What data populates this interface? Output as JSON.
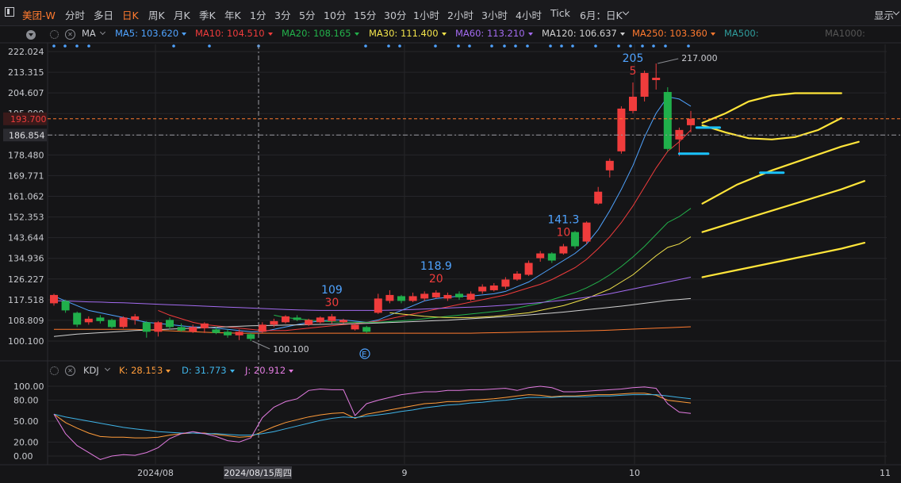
{
  "topbar": {
    "symbol": "美团-W",
    "periods": [
      "分时",
      "多日",
      "日K",
      "周K",
      "月K",
      "季K",
      "年K",
      "1分",
      "3分",
      "5分",
      "10分",
      "15分",
      "30分",
      "1小时",
      "2小时",
      "3小时",
      "4小时",
      "Tick"
    ],
    "active_period": "日K",
    "period_selector": "6月：日K",
    "display_label": "显示"
  },
  "ma_toolbar": {
    "indicator": "MA",
    "items": [
      {
        "label": "MA5:",
        "value": "103.620",
        "color": "#4fa3ff"
      },
      {
        "label": "MA10:",
        "value": "104.510",
        "color": "#f03c3c"
      },
      {
        "label": "MA20:",
        "value": "108.165",
        "color": "#23b24b"
      },
      {
        "label": "MA30:",
        "value": "111.400",
        "color": "#f2e34b"
      },
      {
        "label": "MA60:",
        "value": "113.210",
        "color": "#a36bf0"
      },
      {
        "label": "MA120:",
        "value": "106.637",
        "color": "#d0d0d0"
      },
      {
        "label": "MA250:",
        "value": "103.360",
        "color": "#ff7a2f"
      },
      {
        "label": "MA500:",
        "value": "",
        "color": "#2f9d9d"
      },
      {
        "label": "MA1000:",
        "value": "",
        "color": "#555"
      }
    ],
    "extra_ghost": "MA1000"
  },
  "kdj_toolbar": {
    "indicator": "KDJ",
    "items": [
      {
        "label": "K:",
        "value": "28.153",
        "color": "#ff9c3a"
      },
      {
        "label": "D:",
        "value": "31.773",
        "color": "#3fb4e8"
      },
      {
        "label": "J:",
        "value": "20.912",
        "color": "#e27be0"
      }
    ]
  },
  "colors": {
    "up": "#f03c3c",
    "down": "#20b04b",
    "bg": "#151517",
    "grid": "#26262a",
    "accent": "#ff7a2f"
  },
  "chart_data": {
    "type": "candlestick",
    "price_axis": {
      "ylim": [
        95,
        225
      ],
      "ticks": [
        "222.024",
        "213.315",
        "204.607",
        "195.899",
        "186.854",
        "178.480",
        "169.771",
        "161.062",
        "152.353",
        "143.644",
        "134.936",
        "126.227",
        "117.518",
        "108.809",
        "100.100"
      ]
    },
    "current_price_label": "193.700",
    "crosshair_price_label": "186.854",
    "crosshair_date_label": "2024/08/15周四",
    "x_axis_labels": [
      "2024/08",
      "9",
      "10",
      "11"
    ],
    "high_annotation": "217.000",
    "low_annotation": "100.100",
    "earnings_marker": "E",
    "candles": [
      {
        "o": 116,
        "c": 119.5,
        "h": 120,
        "l": 115
      },
      {
        "o": 117,
        "c": 113,
        "h": 117.5,
        "l": 112
      },
      {
        "o": 112,
        "c": 107,
        "h": 112.5,
        "l": 106
      },
      {
        "o": 108,
        "c": 109.5,
        "h": 110.5,
        "l": 107
      },
      {
        "o": 110,
        "c": 108.5,
        "h": 111,
        "l": 107.5
      },
      {
        "o": 109,
        "c": 106,
        "h": 109.5,
        "l": 105.5
      },
      {
        "o": 106,
        "c": 110,
        "h": 110.5,
        "l": 105.5
      },
      {
        "o": 109,
        "c": 110.5,
        "h": 111.5,
        "l": 107
      },
      {
        "o": 108,
        "c": 104,
        "h": 108.5,
        "l": 101.5
      },
      {
        "o": 104,
        "c": 108,
        "h": 108.5,
        "l": 102
      },
      {
        "o": 109,
        "c": 106,
        "h": 110,
        "l": 105
      },
      {
        "o": 106,
        "c": 104.5,
        "h": 107.5,
        "l": 104
      },
      {
        "o": 104,
        "c": 106,
        "h": 107,
        "l": 103.5
      },
      {
        "o": 105.5,
        "c": 107.5,
        "h": 108,
        "l": 103.5
      },
      {
        "o": 105,
        "c": 103.5,
        "h": 106,
        "l": 103
      },
      {
        "o": 104,
        "c": 102.5,
        "h": 105,
        "l": 101.5
      },
      {
        "o": 102.5,
        "c": 104,
        "h": 105,
        "l": 100.5
      },
      {
        "o": 103,
        "c": 101,
        "h": 103.5,
        "l": 100.1
      },
      {
        "o": 104,
        "c": 107,
        "h": 108,
        "l": 103.5
      },
      {
        "o": 107,
        "c": 108.5,
        "h": 109.5,
        "l": 106
      },
      {
        "o": 108,
        "c": 110.5,
        "h": 111,
        "l": 107.5
      },
      {
        "o": 110,
        "c": 109,
        "h": 111,
        "l": 108.5
      },
      {
        "o": 107,
        "c": 109,
        "h": 109.5,
        "l": 106.5
      },
      {
        "o": 108,
        "c": 110,
        "h": 110.5,
        "l": 107.5
      },
      {
        "o": 108.5,
        "c": 110.5,
        "h": 111.5,
        "l": 107.5
      },
      {
        "o": 108,
        "c": 109,
        "h": 109.5,
        "l": 107.5
      },
      {
        "o": 105,
        "c": 107,
        "h": 107.5,
        "l": 104.5
      },
      {
        "o": 106,
        "c": 104,
        "h": 106.5,
        "l": 103.5
      },
      {
        "o": 112,
        "c": 118,
        "h": 120,
        "l": 111.5
      },
      {
        "o": 117,
        "c": 119.5,
        "h": 121.5,
        "l": 116
      },
      {
        "o": 119,
        "c": 117,
        "h": 119.5,
        "l": 116
      },
      {
        "o": 117,
        "c": 119,
        "h": 120.5,
        "l": 116.5
      },
      {
        "o": 118,
        "c": 120,
        "h": 121,
        "l": 117
      },
      {
        "o": 118.5,
        "c": 120.5,
        "h": 121.5,
        "l": 118
      },
      {
        "o": 118,
        "c": 119.5,
        "h": 120.5,
        "l": 117
      },
      {
        "o": 120,
        "c": 118.5,
        "h": 121,
        "l": 117.5
      },
      {
        "o": 117.5,
        "c": 120,
        "h": 121,
        "l": 117
      },
      {
        "o": 121,
        "c": 123,
        "h": 124,
        "l": 120
      },
      {
        "o": 121.5,
        "c": 123.5,
        "h": 124.5,
        "l": 121
      },
      {
        "o": 123,
        "c": 126,
        "h": 127,
        "l": 122
      },
      {
        "o": 126,
        "c": 128.5,
        "h": 129.5,
        "l": 125.5
      },
      {
        "o": 128,
        "c": 133,
        "h": 134,
        "l": 127.5
      },
      {
        "o": 135,
        "c": 137,
        "h": 138,
        "l": 133.5
      },
      {
        "o": 137,
        "c": 134,
        "h": 137.5,
        "l": 133
      },
      {
        "o": 137,
        "c": 140,
        "h": 141,
        "l": 136.5
      },
      {
        "o": 146,
        "c": 140,
        "h": 146.5,
        "l": 139
      },
      {
        "o": 142,
        "c": 150,
        "h": 150.5,
        "l": 141
      },
      {
        "o": 158,
        "c": 163,
        "h": 165,
        "l": 157.5
      },
      {
        "o": 172,
        "c": 176,
        "h": 177,
        "l": 169
      },
      {
        "o": 180,
        "c": 198,
        "h": 199,
        "l": 179
      },
      {
        "o": 197,
        "c": 203,
        "h": 209,
        "l": 196
      },
      {
        "o": 203,
        "c": 213,
        "h": 214,
        "l": 201
      },
      {
        "o": 210,
        "c": 211,
        "h": 217,
        "l": 206
      },
      {
        "o": 205,
        "c": 181,
        "h": 207,
        "l": 180
      },
      {
        "o": 185,
        "c": 189,
        "h": 190,
        "l": 178
      },
      {
        "o": 191,
        "c": 193.7,
        "h": 197,
        "l": 188
      }
    ],
    "series": [
      {
        "name": "MA5",
        "color": "#4fa3ff",
        "values": [
          119,
          117,
          115,
          113,
          112,
          111,
          110,
          109,
          108,
          107.5,
          107,
          106.5,
          106,
          106,
          105.5,
          105,
          104.5,
          104,
          104,
          105,
          106,
          107,
          108,
          108.5,
          109,
          109,
          108.5,
          108,
          109,
          111,
          113,
          115,
          117,
          118,
          118.5,
          119,
          119,
          119.5,
          120,
          121,
          123,
          125,
          128,
          131,
          134,
          137,
          141,
          147,
          155,
          164,
          174,
          186,
          196,
          203,
          202,
          199
        ]
      },
      {
        "name": "MA10",
        "color": "#f03c3c",
        "values": [
          null,
          null,
          null,
          null,
          null,
          null,
          null,
          null,
          null,
          113,
          111,
          109.5,
          108,
          107,
          106.5,
          106,
          105.5,
          105,
          104.5,
          104.5,
          104.5,
          105,
          105.5,
          106,
          106.5,
          107,
          107.5,
          108,
          108.5,
          109.5,
          110.5,
          111.5,
          112.5,
          113.5,
          114.5,
          115.5,
          116.5,
          117.5,
          118.5,
          119.5,
          121,
          122.5,
          124,
          126,
          128.5,
          131,
          134.5,
          139,
          144,
          150,
          157,
          165,
          173,
          180,
          184,
          189
        ]
      },
      {
        "name": "MA20",
        "color": "#23b24b",
        "values": [
          null,
          null,
          null,
          null,
          null,
          null,
          null,
          null,
          null,
          null,
          null,
          null,
          null,
          null,
          null,
          null,
          null,
          null,
          null,
          111,
          110,
          109.5,
          109,
          108.5,
          108.2,
          108,
          108,
          108,
          108,
          108.3,
          108.6,
          109,
          109.5,
          110,
          110.5,
          111,
          111.5,
          112,
          112.5,
          113,
          114,
          115,
          116,
          117.5,
          119,
          120.5,
          122.5,
          125,
          128,
          131.5,
          135.5,
          140,
          145,
          150,
          152.5,
          156
        ]
      },
      {
        "name": "MA30",
        "color": "#f2e34b",
        "values": [
          null,
          null,
          null,
          null,
          null,
          null,
          null,
          null,
          null,
          null,
          null,
          null,
          null,
          null,
          null,
          null,
          null,
          null,
          null,
          null,
          null,
          null,
          null,
          null,
          null,
          null,
          null,
          null,
          null,
          112,
          111.5,
          111,
          110.5,
          110.2,
          110,
          110,
          110,
          110.2,
          110.5,
          111,
          111.5,
          112,
          113,
          114,
          115,
          116.5,
          118,
          120,
          122,
          125,
          128,
          132,
          136,
          139.5,
          141,
          144
        ]
      },
      {
        "name": "MA60",
        "color": "#a36bf0",
        "values": [
          117,
          117,
          116.8,
          116.6,
          116.5,
          116.3,
          116.2,
          116,
          115.8,
          115.6,
          115.4,
          115.2,
          115,
          114.8,
          114.6,
          114.4,
          114.2,
          114,
          113.8,
          113.6,
          113.4,
          113.2,
          113.1,
          113,
          113,
          113,
          113,
          113,
          113,
          113.1,
          113.2,
          113.4,
          113.6,
          113.8,
          114,
          114.2,
          114.4,
          114.6,
          114.9,
          115.2,
          115.5,
          115.9,
          116.3,
          116.8,
          117.3,
          117.9,
          118.5,
          119.2,
          120,
          121,
          122,
          123,
          124,
          125,
          126,
          127
        ]
      },
      {
        "name": "MA120",
        "color": "#d0d0d0",
        "values": [
          102,
          102.5,
          103,
          103.3,
          103.6,
          103.9,
          104.2,
          104.5,
          104.7,
          104.9,
          105.1,
          105.3,
          105.5,
          105.7,
          105.9,
          106.1,
          106.3,
          106.5,
          106.6,
          106.7,
          106.8,
          106.9,
          107,
          107.1,
          107.2,
          107.3,
          107.4,
          107.5,
          107.7,
          107.9,
          108.1,
          108.3,
          108.5,
          108.7,
          108.9,
          109.2,
          109.5,
          109.8,
          110.1,
          110.4,
          110.7,
          111.1,
          111.5,
          111.9,
          112.3,
          112.8,
          113.3,
          113.8,
          114.3,
          114.8,
          115.4,
          116,
          116.6,
          117.2,
          117.6,
          118
        ]
      },
      {
        "name": "MA250",
        "color": "#ff7a2f",
        "values": [
          105,
          105,
          105,
          105,
          105,
          105,
          105,
          105,
          104.8,
          104.6,
          104.4,
          104.2,
          104,
          103.8,
          103.6,
          103.5,
          103.4,
          103.4,
          103.4,
          103.4,
          103.4,
          103.4,
          103.4,
          103.4,
          103.4,
          103.4,
          103.4,
          103.4,
          103.4,
          103.4,
          103.4,
          103.4,
          103.4,
          103.4,
          103.4,
          103.4,
          103.4,
          103.5,
          103.6,
          103.7,
          103.8,
          103.9,
          104,
          104.1,
          104.2,
          104.3,
          104.4,
          104.5,
          104.7,
          104.9,
          105.1,
          105.3,
          105.5,
          105.7,
          105.9,
          106.1
        ]
      }
    ],
    "projections": {
      "color": "#ffe53a",
      "upper": [
        [
          56,
          192
        ],
        [
          58,
          196
        ],
        [
          60,
          201
        ],
        [
          62,
          203.5
        ],
        [
          64,
          204.5
        ],
        [
          66,
          204.5
        ],
        [
          68,
          204.5
        ]
      ],
      "middle": [
        [
          56,
          191
        ],
        [
          58,
          188
        ],
        [
          60,
          185.5
        ],
        [
          62,
          185
        ],
        [
          64,
          186
        ],
        [
          66,
          189
        ],
        [
          68,
          194
        ]
      ],
      "band1": [
        [
          56,
          158
        ],
        [
          59,
          166
        ],
        [
          62,
          172
        ],
        [
          65,
          177
        ],
        [
          68,
          182
        ],
        [
          69.5,
          184
        ]
      ],
      "band2": [
        [
          56,
          146
        ],
        [
          60,
          152
        ],
        [
          64,
          158
        ],
        [
          68,
          164
        ],
        [
          70,
          167.5
        ]
      ],
      "band3": [
        [
          56,
          127
        ],
        [
          60,
          131
        ],
        [
          64,
          135
        ],
        [
          68,
          139
        ],
        [
          70,
          141.5
        ]
      ]
    },
    "horizontal_marks": [
      {
        "x1": 54,
        "x2": 56.5,
        "y": 179,
        "color": "#19c2ff"
      },
      {
        "x1": 55.5,
        "x2": 57.5,
        "y": 190,
        "color": "#19c2ff"
      },
      {
        "x1": 61,
        "x2": 63,
        "y": 171,
        "color": "#19c2ff"
      }
    ],
    "annotations": [
      {
        "idx": 24,
        "top": "109",
        "bottom": "30"
      },
      {
        "idx": 33,
        "top": "118.9",
        "bottom": "20"
      },
      {
        "idx": 44,
        "top": "141.3",
        "bottom": "10"
      },
      {
        "idx": 50,
        "top": "205",
        "bottom": "5"
      }
    ],
    "kdj": {
      "ylim": [
        -10,
        108
      ],
      "ticks": [
        "100.00",
        "80.00",
        "50.00",
        "20.00",
        "0.00"
      ],
      "K": [
        60,
        48,
        40,
        33,
        28,
        27,
        27,
        26,
        26,
        27,
        30,
        32,
        33,
        33,
        31,
        29,
        27,
        28,
        35,
        42,
        48,
        52,
        56,
        59,
        61,
        62,
        54,
        60,
        63,
        66,
        69,
        72,
        75,
        76,
        78,
        78,
        80,
        81,
        82,
        84,
        86,
        88,
        87,
        85,
        86,
        86,
        87,
        88,
        88,
        89,
        90,
        90,
        87,
        80,
        78,
        76
      ],
      "D": [
        60,
        56,
        53,
        50,
        47,
        44,
        41,
        39,
        37,
        35,
        34,
        33,
        33,
        32,
        32,
        31,
        30,
        30,
        32,
        35,
        39,
        43,
        47,
        51,
        54,
        56,
        55,
        57,
        59,
        61,
        64,
        66,
        69,
        71,
        73,
        74,
        76,
        77,
        79,
        80,
        82,
        84,
        84,
        84,
        85,
        85,
        85,
        86,
        86,
        87,
        88,
        88,
        88,
        86,
        84,
        82
      ],
      "J": [
        60,
        32,
        15,
        5,
        -5,
        0,
        2,
        1,
        5,
        12,
        25,
        32,
        35,
        32,
        28,
        22,
        20,
        26,
        55,
        70,
        78,
        82,
        94,
        96,
        95,
        95,
        58,
        75,
        80,
        84,
        88,
        90,
        92,
        92,
        94,
        94,
        95,
        95,
        96,
        97,
        94,
        98,
        100,
        98,
        92,
        92,
        93,
        94,
        95,
        96,
        98,
        99,
        97,
        75,
        63,
        61
      ]
    }
  }
}
